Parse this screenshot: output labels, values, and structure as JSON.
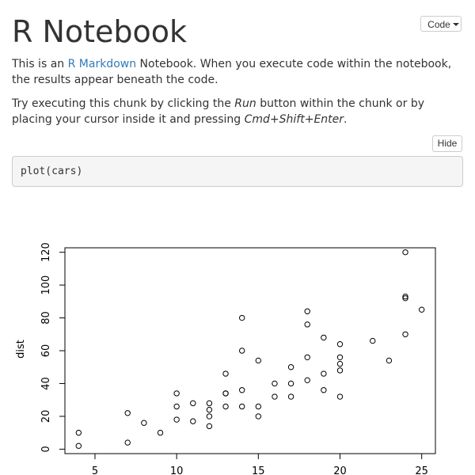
{
  "header": {
    "title": "R Notebook",
    "code_button_label": "Code"
  },
  "intro": {
    "text_before_link": "This is an ",
    "link_text": "R Markdown",
    "text_after_link": " Notebook. When you execute code within the notebook, the results appear beneath the code.",
    "instruction_before": "Try executing this chunk by clicking the ",
    "run_word": "Run",
    "instruction_middle": " button within the chunk or by placing your cursor inside it and pressing ",
    "shortcut": "Cmd+Shift+Enter",
    "instruction_end": "."
  },
  "chunk": {
    "hide_button_label": "Hide",
    "code": "plot(cars)"
  },
  "chart_data": {
    "type": "scatter",
    "title": "",
    "xlabel": "",
    "ylabel": "dist",
    "xlim": [
      3.16,
      25.84
    ],
    "ylim": [
      -2.72,
      122.72
    ],
    "x_ticks": [
      5,
      10,
      15,
      20,
      25
    ],
    "y_ticks": [
      0,
      20,
      40,
      60,
      80,
      100,
      120
    ],
    "grid": false,
    "points": [
      [
        4,
        2
      ],
      [
        4,
        10
      ],
      [
        7,
        4
      ],
      [
        7,
        22
      ],
      [
        8,
        16
      ],
      [
        9,
        10
      ],
      [
        10,
        18
      ],
      [
        10,
        26
      ],
      [
        10,
        34
      ],
      [
        11,
        17
      ],
      [
        11,
        28
      ],
      [
        12,
        14
      ],
      [
        12,
        20
      ],
      [
        12,
        24
      ],
      [
        12,
        28
      ],
      [
        13,
        26
      ],
      [
        13,
        34
      ],
      [
        13,
        34
      ],
      [
        13,
        46
      ],
      [
        14,
        26
      ],
      [
        14,
        36
      ],
      [
        14,
        60
      ],
      [
        14,
        80
      ],
      [
        15,
        20
      ],
      [
        15,
        26
      ],
      [
        15,
        54
      ],
      [
        16,
        32
      ],
      [
        16,
        40
      ],
      [
        17,
        32
      ],
      [
        17,
        40
      ],
      [
        17,
        50
      ],
      [
        18,
        42
      ],
      [
        18,
        56
      ],
      [
        18,
        76
      ],
      [
        18,
        84
      ],
      [
        19,
        36
      ],
      [
        19,
        46
      ],
      [
        19,
        68
      ],
      [
        20,
        32
      ],
      [
        20,
        48
      ],
      [
        20,
        52
      ],
      [
        20,
        56
      ],
      [
        20,
        64
      ],
      [
        22,
        66
      ],
      [
        23,
        54
      ],
      [
        24,
        70
      ],
      [
        24,
        92
      ],
      [
        24,
        93
      ],
      [
        24,
        120
      ],
      [
        25,
        85
      ]
    ]
  }
}
